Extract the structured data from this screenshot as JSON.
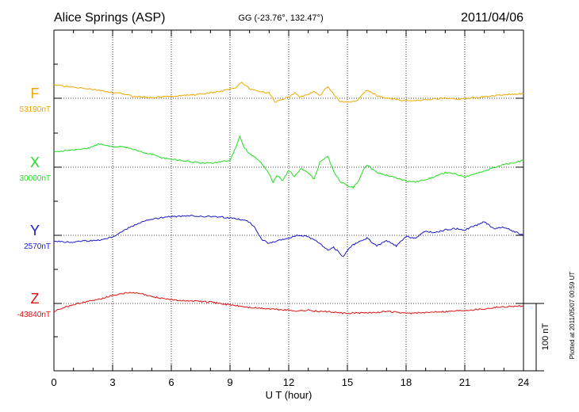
{
  "chart_data": {
    "type": "line",
    "title": "Alice Springs (ASP)",
    "subtitle": "GG (-23.76°, 132.47°)",
    "date": "2011/04/06",
    "xlabel": "U T (hour)",
    "xlim": [
      0,
      24
    ],
    "xticks": [
      "0",
      "3",
      "6",
      "9",
      "12",
      "15",
      "18",
      "21",
      "24"
    ],
    "grid": true,
    "scale_bar_label": "100 nT",
    "footer": "Plotted at 2011/05/07 00:59 UT",
    "colors": {
      "F": "#f0a800",
      "X": "#22dd22",
      "Y": "#1a1acc",
      "Z": "#dd1111",
      "axis": "#000000"
    },
    "series": [
      {
        "name": "F",
        "baseline_label": "53190nT",
        "baseline_nT": 53190,
        "x": [
          0,
          0.5,
          1,
          1.5,
          2,
          2.5,
          3,
          3.5,
          4,
          4.5,
          5,
          5.5,
          6,
          6.5,
          7,
          7.5,
          8,
          8.5,
          9,
          9.3,
          9.6,
          10,
          10.5,
          11,
          11.3,
          11.6,
          12,
          12.3,
          12.6,
          13,
          13.3,
          13.6,
          14,
          14.3,
          14.6,
          15,
          15.5,
          15.8,
          16,
          16.5,
          17,
          17.5,
          18,
          18.5,
          19,
          19.5,
          20,
          20.5,
          21,
          21.5,
          22,
          22.5,
          23,
          23.5,
          24
        ],
        "y": [
          20,
          18,
          16,
          15,
          13,
          11,
          8,
          7,
          3,
          2,
          1,
          2,
          3,
          4,
          5,
          6,
          8,
          10,
          14,
          16,
          24,
          14,
          10,
          8,
          -6,
          -2,
          2,
          8,
          2,
          6,
          10,
          4,
          18,
          6,
          -4,
          -6,
          -4,
          6,
          12,
          4,
          0,
          -2,
          -4,
          -3,
          -2,
          -1,
          0,
          -1,
          -1,
          1,
          2,
          4,
          5,
          6,
          7
        ]
      },
      {
        "name": "X",
        "baseline_label": "30000nT",
        "baseline_nT": 30000,
        "x": [
          0,
          0.5,
          1,
          1.5,
          2,
          2.3,
          2.6,
          3,
          3.5,
          4,
          4.5,
          5,
          5.5,
          6,
          6.5,
          7,
          7.5,
          8,
          8.5,
          9,
          9.3,
          9.5,
          9.7,
          10,
          10.3,
          10.6,
          11,
          11.2,
          11.4,
          11.7,
          12,
          12.3,
          12.6,
          13,
          13.3,
          13.6,
          14,
          14.3,
          14.6,
          15,
          15.3,
          15.6,
          15.8,
          16,
          16.5,
          17,
          17.5,
          18,
          18.5,
          19,
          19.5,
          20,
          20.5,
          21,
          21.5,
          22,
          22.5,
          23,
          23.5,
          24
        ],
        "y": [
          24,
          24,
          26,
          27,
          30,
          35,
          32,
          30,
          31,
          27,
          22,
          19,
          14,
          12,
          10,
          8,
          6,
          6,
          8,
          10,
          30,
          46,
          30,
          20,
          14,
          6,
          -10,
          -22,
          -12,
          -20,
          -4,
          -14,
          -2,
          -8,
          -18,
          8,
          16,
          -6,
          -20,
          -28,
          -30,
          -20,
          -4,
          4,
          -8,
          -12,
          -16,
          -20,
          -22,
          -18,
          -14,
          -8,
          -10,
          -14,
          -10,
          -6,
          0,
          4,
          6,
          10
        ]
      },
      {
        "name": "Y",
        "baseline_label": "2570nT",
        "baseline_nT": 2570,
        "x": [
          0,
          0.5,
          1,
          1.5,
          2,
          2.5,
          3,
          3.5,
          4,
          4.5,
          5,
          5.5,
          6,
          6.5,
          7,
          7.5,
          8,
          8.5,
          9,
          9.5,
          10,
          10.3,
          10.6,
          11,
          11.5,
          12,
          12.5,
          13,
          13.5,
          14,
          14.3,
          14.6,
          14.8,
          15,
          15.3,
          15.6,
          16,
          16.5,
          17,
          17.5,
          18,
          18.5,
          19,
          19.5,
          20,
          20.5,
          21,
          21.5,
          22,
          22.5,
          23,
          23.5,
          24
        ],
        "y": [
          -8,
          -10,
          -10,
          -8,
          -8,
          -6,
          -2,
          6,
          14,
          20,
          24,
          26,
          28,
          28,
          29,
          28,
          28,
          27,
          26,
          24,
          20,
          10,
          -6,
          -12,
          -8,
          -4,
          0,
          -2,
          -10,
          -22,
          -18,
          -26,
          -32,
          -22,
          -14,
          -10,
          -4,
          -16,
          -8,
          -16,
          -2,
          -4,
          6,
          4,
          8,
          10,
          8,
          14,
          20,
          10,
          12,
          6,
          0
        ]
      },
      {
        "name": "Z",
        "baseline_label": "-43840nT",
        "baseline_nT": -43840,
        "x": [
          0,
          0.5,
          1,
          1.5,
          2,
          2.5,
          3,
          3.5,
          4,
          4.5,
          5,
          5.5,
          6,
          6.5,
          7,
          7.5,
          8,
          8.5,
          9,
          9.5,
          10,
          10.5,
          11,
          11.5,
          12,
          12.5,
          13,
          13.5,
          14,
          14.5,
          15,
          15.5,
          16,
          16.5,
          17,
          17.5,
          18,
          18.5,
          19,
          19.5,
          20,
          20.5,
          21,
          21.5,
          22,
          22.5,
          23,
          23.5,
          24
        ],
        "y": [
          -12,
          -6,
          -2,
          2,
          4,
          8,
          12,
          15,
          16,
          14,
          10,
          8,
          6,
          4,
          4,
          3,
          2,
          0,
          -2,
          -4,
          -6,
          -7,
          -8,
          -9,
          -10,
          -11,
          -10,
          -12,
          -12,
          -14,
          -15,
          -14,
          -14,
          -13,
          -12,
          -13,
          -15,
          -14,
          -14,
          -12,
          -12,
          -11,
          -10,
          -9,
          -8,
          -6,
          -5,
          -4,
          -4
        ]
      }
    ]
  }
}
